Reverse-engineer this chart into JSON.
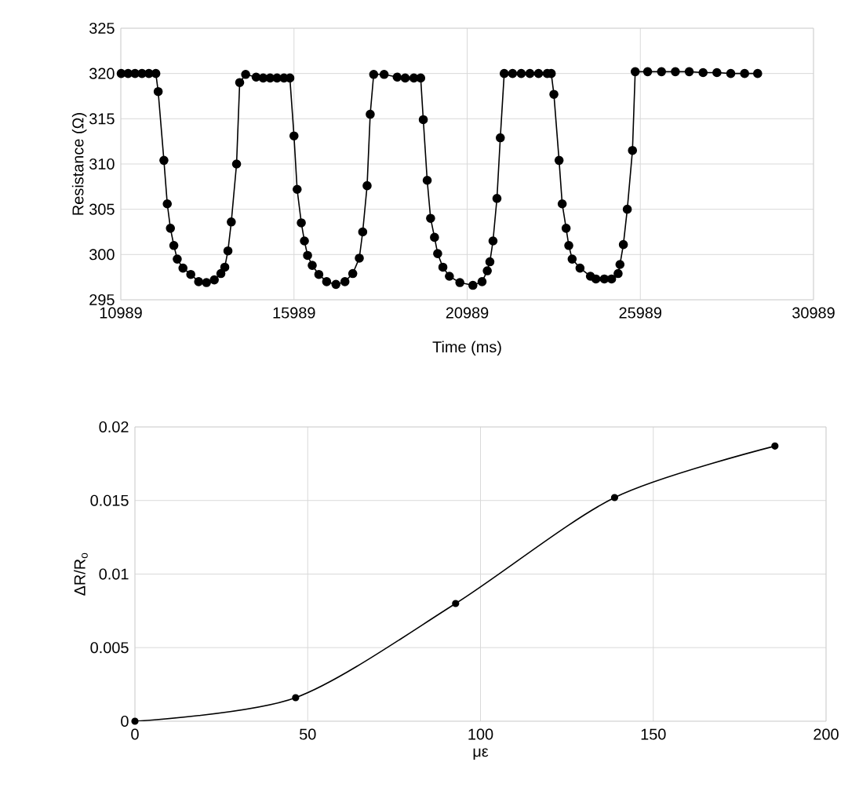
{
  "chart_data": [
    {
      "type": "line",
      "xlabel": "Time (ms)",
      "ylabel": "Resistance (Ω)",
      "color": "#000000",
      "marker": "circle",
      "line_style": "solid",
      "grid": true,
      "xlim": [
        10989,
        30989
      ],
      "xticks": [
        10989,
        15989,
        20989,
        25989,
        30989
      ],
      "ylim": [
        295,
        325
      ],
      "yticks": [
        295,
        300,
        305,
        310,
        315,
        320,
        325
      ],
      "x": [
        11000,
        11200,
        11400,
        11600,
        11800,
        12000,
        12068,
        12233,
        12330,
        12421,
        12520,
        12618,
        12783,
        13009,
        13236,
        13462,
        13688,
        13878,
        13991,
        14082,
        14179,
        14331,
        14421,
        14593,
        14896,
        15100,
        15300,
        15500,
        15700,
        15870,
        15989,
        16080,
        16200,
        16290,
        16381,
        16516,
        16706,
        16932,
        17200,
        17460,
        17686,
        17875,
        17973,
        18100,
        18190,
        18290,
        18591,
        18968,
        19200,
        19450,
        19647,
        19722,
        19835,
        19933,
        20046,
        20137,
        20288,
        20476,
        20778,
        21154,
        21419,
        21570,
        21645,
        21735,
        21849,
        21946,
        22059,
        22300,
        22550,
        22800,
        23050,
        23300,
        23417,
        23493,
        23643,
        23733,
        23846,
        23923,
        24020,
        24247,
        24548,
        24706,
        24950,
        25159,
        25347,
        25401,
        25499,
        25612,
        25762,
        25841,
        26200,
        26600,
        27000,
        27400,
        27800,
        28200,
        28600,
        29000,
        29376
      ],
      "values": [
        320.0,
        320.0,
        320.0,
        320.0,
        320.0,
        320.0,
        318.0,
        310.4,
        305.6,
        302.9,
        301.0,
        299.5,
        298.5,
        297.8,
        297.0,
        296.9,
        297.2,
        297.9,
        298.6,
        300.4,
        303.6,
        310.0,
        319.0,
        319.9,
        319.6,
        319.5,
        319.5,
        319.5,
        319.5,
        319.5,
        313.1,
        307.2,
        303.5,
        301.5,
        299.9,
        298.8,
        297.8,
        297.0,
        296.7,
        297.0,
        297.9,
        299.6,
        302.5,
        307.6,
        315.5,
        319.9,
        319.9,
        319.6,
        319.5,
        319.5,
        319.5,
        314.9,
        308.2,
        304.0,
        301.9,
        300.1,
        298.6,
        297.6,
        296.9,
        296.6,
        297.0,
        298.2,
        299.2,
        301.5,
        306.2,
        312.9,
        320.0,
        320.0,
        320.0,
        320.0,
        320.0,
        320.0,
        320.0,
        317.7,
        310.4,
        305.6,
        302.9,
        301.0,
        299.5,
        298.5,
        297.6,
        297.3,
        297.3,
        297.3,
        297.9,
        298.9,
        301.1,
        305.0,
        311.5,
        320.2,
        320.2,
        320.2,
        320.2,
        320.2,
        320.1,
        320.1,
        320.0,
        320.0,
        320.0
      ]
    },
    {
      "type": "line",
      "xlabel": "με",
      "ylabel": "ΔR/R$_{o}$",
      "color": "#000000",
      "marker": "circle",
      "line_style": "solid",
      "grid": true,
      "xlim": [
        0,
        200
      ],
      "xticks": [
        0,
        50,
        100,
        150,
        200
      ],
      "ylim": [
        0,
        0.02
      ],
      "yticks": [
        0,
        0.005,
        0.01,
        0.015,
        0.02
      ],
      "x": [
        0,
        46.5,
        92.8,
        138.8,
        185.2
      ],
      "values": [
        0,
        0.0016,
        0.008,
        0.0152,
        0.0187
      ]
    }
  ]
}
